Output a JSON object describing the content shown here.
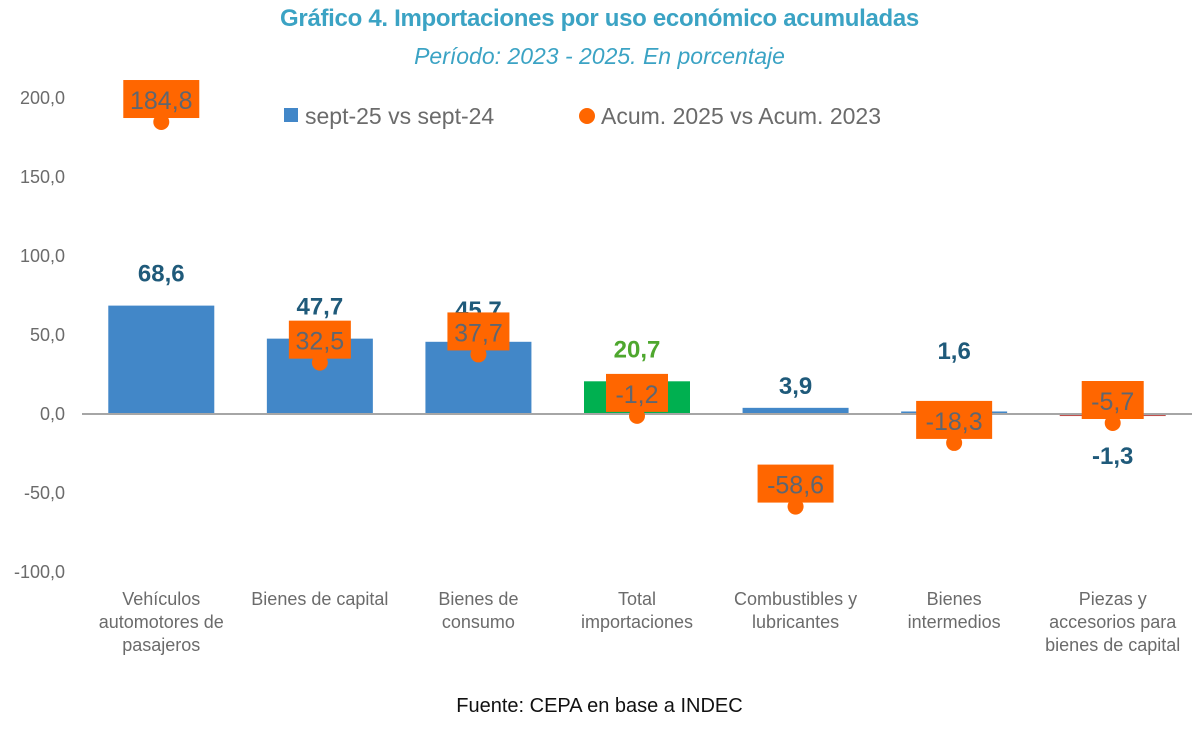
{
  "header": {
    "title": "Gráfico 4. Importaciones por uso económico acumuladas",
    "subtitle": "Período: 2023 - 2025. En porcentaje"
  },
  "footer": {
    "source": "Fuente: CEPA en base a INDEC"
  },
  "colors": {
    "bar_default": "#4287c8",
    "bar_total": "#00b050",
    "bar_negative": "#c0504d",
    "dot": "#ff6600",
    "label_default": "#1f5a7a",
    "label_total": "#4ea72e",
    "axis": "#a6a6a6"
  },
  "chart_data": {
    "type": "bar",
    "title": "Gráfico 4. Importaciones por uso económico acumuladas",
    "subtitle": "Período: 2023 - 2025. En porcentaje",
    "xlabel": "",
    "ylabel": "",
    "ylim": [
      -100,
      200
    ],
    "yticks": [
      200,
      150,
      100,
      50,
      0,
      -50,
      -100
    ],
    "ytick_labels": [
      "200,0",
      "150,0",
      "100,0",
      "50,0",
      "0,0",
      "-50,0",
      "-100,0"
    ],
    "grid": false,
    "legend_position": "top-center",
    "categories": [
      [
        "Vehículos",
        "automotores de",
        "pasajeros"
      ],
      [
        "Bienes de capital"
      ],
      [
        "Bienes de",
        "consumo"
      ],
      [
        "Total",
        "importaciones"
      ],
      [
        "Combustibles y",
        "lubricantes"
      ],
      [
        "Bienes",
        "intermedios"
      ],
      [
        "Piezas y",
        "accesorios para",
        "bienes de capital"
      ]
    ],
    "series": [
      {
        "name": "sept-25 vs sept-24",
        "kind": "bar",
        "values": [
          68.6,
          47.7,
          45.7,
          20.7,
          3.9,
          1.6,
          -1.3
        ],
        "labels": [
          "68,6",
          "47,7",
          "45,7",
          "20,7",
          "3,9",
          "1,6",
          "-1,3"
        ]
      },
      {
        "name": "Acum. 2025 vs Acum. 2023",
        "kind": "dot",
        "values": [
          184.8,
          32.5,
          37.7,
          -1.2,
          -58.6,
          -18.3,
          -5.7
        ],
        "labels": [
          "184,8",
          "32,5",
          "37,7",
          "-1,2",
          "-58,6",
          "-18,3",
          "-5,7"
        ]
      }
    ]
  }
}
